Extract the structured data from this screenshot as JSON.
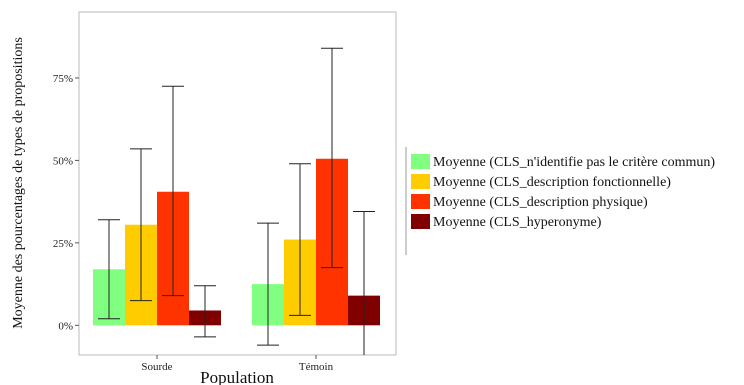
{
  "chart_data": {
    "type": "bar",
    "xlabel": "Population",
    "ylabel": "Moyenne des pourcentages de types de propositions",
    "categories": [
      "Sourde",
      "Témoin"
    ],
    "ylim": [
      -0.09,
      0.95
    ],
    "yticks": [
      0,
      0.25,
      0.5,
      0.75
    ],
    "ytick_labels": [
      "0%",
      "25%",
      "50%",
      "75%"
    ],
    "grid": false,
    "legend_position": "right",
    "series": [
      {
        "name": "Moyenne (CLS_n'identifie pas le critère commun)",
        "color": "#80FF80",
        "values": [
          0.17,
          0.125
        ],
        "err_low": [
          0.02,
          -0.06
        ],
        "err_high": [
          0.32,
          0.31
        ]
      },
      {
        "name": "Moyenne (CLS_description fonctionnelle)",
        "color": "#FFCC00",
        "values": [
          0.305,
          0.26
        ],
        "err_low": [
          0.075,
          0.03
        ],
        "err_high": [
          0.535,
          0.49
        ]
      },
      {
        "name": "Moyenne (CLS_description physique)",
        "color": "#FF3300",
        "values": [
          0.405,
          0.505
        ],
        "err_low": [
          0.09,
          0.175
        ],
        "err_high": [
          0.725,
          0.84
        ]
      },
      {
        "name": "Moyenne (CLS_hyperonyme)",
        "color": "#800000",
        "values": [
          0.045,
          0.09
        ],
        "err_low": [
          -0.035,
          -0.095
        ],
        "err_high": [
          0.12,
          0.345
        ]
      }
    ]
  }
}
